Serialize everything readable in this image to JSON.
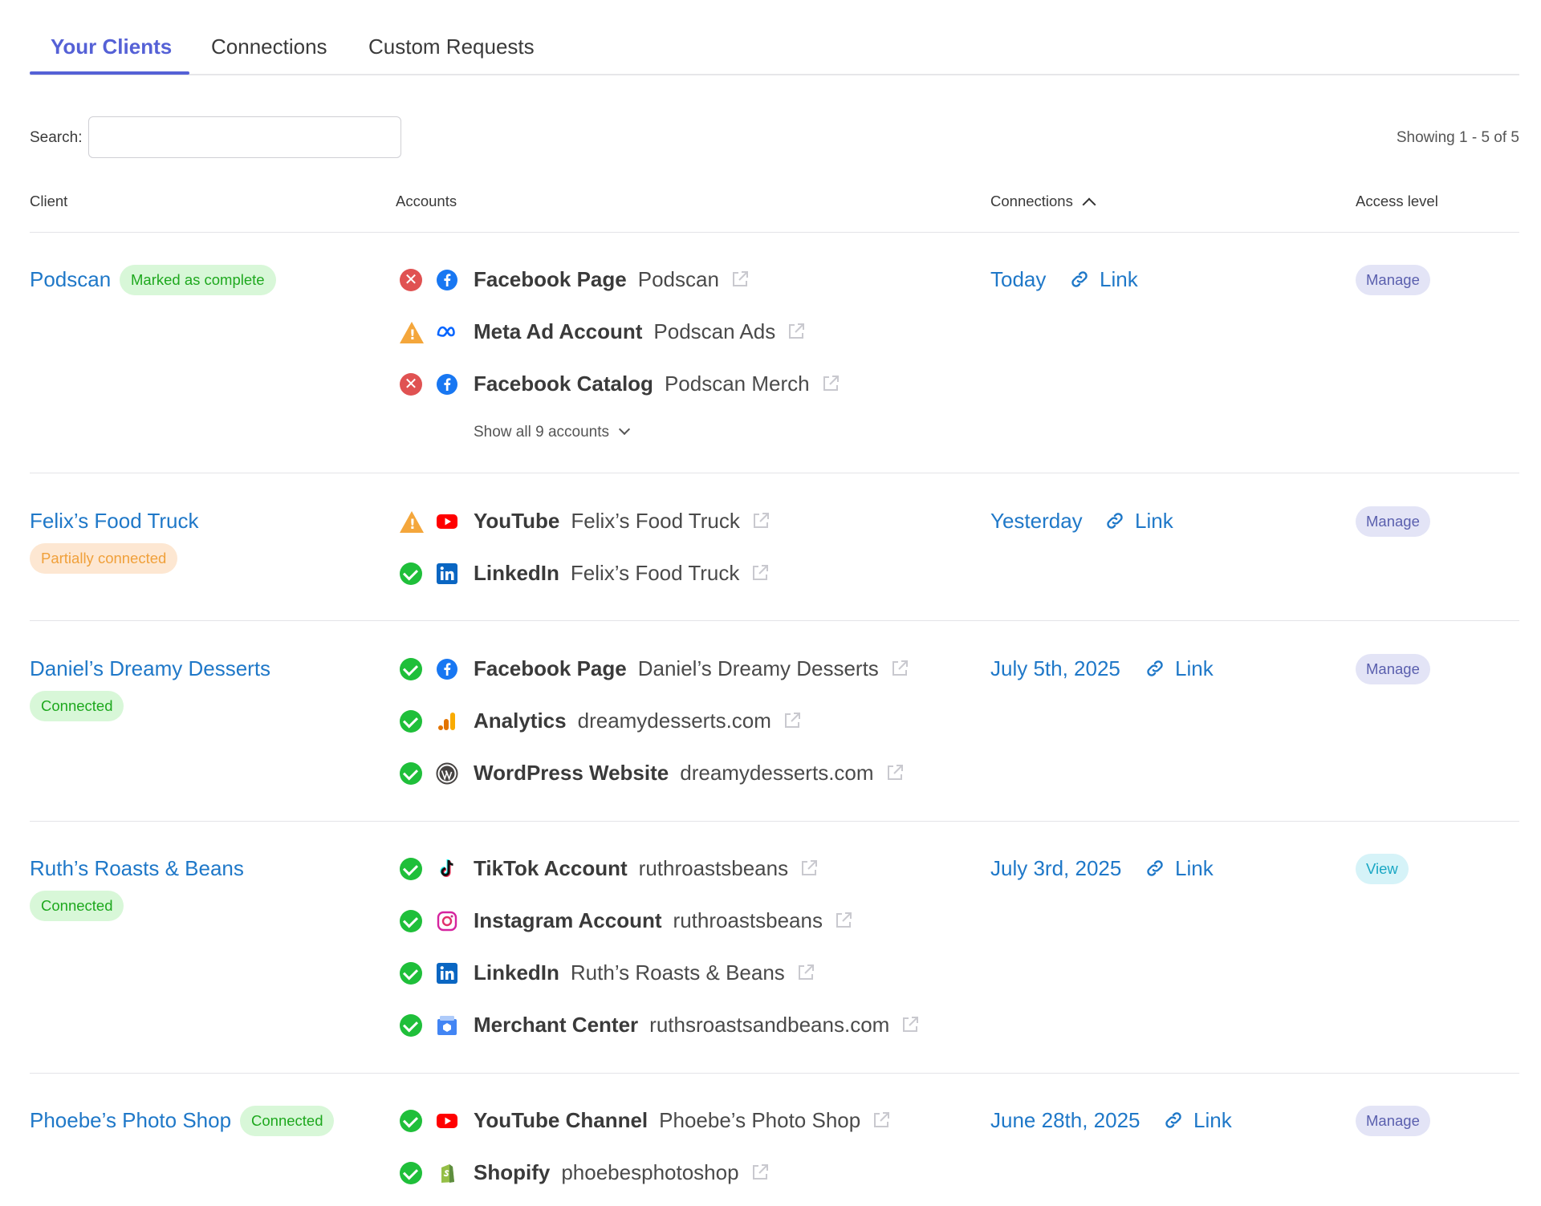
{
  "tabs": [
    {
      "label": "Your Clients",
      "active": true
    },
    {
      "label": "Connections",
      "active": false
    },
    {
      "label": "Custom Requests",
      "active": false
    }
  ],
  "search": {
    "label": "Search:",
    "value": "",
    "placeholder": ""
  },
  "showing": "Showing 1 - 5 of 5",
  "columns": {
    "client": "Client",
    "accounts": "Accounts",
    "connections": "Connections",
    "access": "Access level"
  },
  "colors": {
    "accent": "#5561d6",
    "link": "#1f78c8",
    "ok": "#1fbf3a",
    "error": "#e05252",
    "warning": "#f4a63b"
  },
  "clients": [
    {
      "name": "Podscan",
      "badge": "Marked as complete",
      "connection_date": "Today",
      "link_label": "Link",
      "access": "Manage",
      "accounts": [
        {
          "status": "error",
          "icon": "facebook-icon",
          "type": "Facebook Page",
          "name": "Podscan"
        },
        {
          "status": "warning",
          "icon": "meta-icon",
          "type": "Meta Ad Account",
          "name": "Podscan Ads"
        },
        {
          "status": "error",
          "icon": "facebook-icon",
          "type": "Facebook Catalog",
          "name": "Podscan Merch"
        }
      ],
      "show_all": "Show all 9 accounts"
    },
    {
      "name": "Felix’s Food Truck",
      "badge": "Partially connected",
      "connection_date": "Yesterday",
      "link_label": "Link",
      "access": "Manage",
      "accounts": [
        {
          "status": "warning",
          "icon": "youtube-icon",
          "type": "YouTube",
          "name": "Felix’s Food Truck"
        },
        {
          "status": "ok",
          "icon": "linkedin-icon",
          "type": "LinkedIn",
          "name": "Felix’s Food Truck"
        }
      ]
    },
    {
      "name": "Daniel’s Dreamy Desserts",
      "badge": "Connected",
      "connection_date": "July 5th, 2025",
      "link_label": "Link",
      "access": "Manage",
      "accounts": [
        {
          "status": "ok",
          "icon": "facebook-icon",
          "type": "Facebook Page",
          "name": "Daniel’s Dreamy Desserts"
        },
        {
          "status": "ok",
          "icon": "analytics-icon",
          "type": "Analytics",
          "name": "dreamydesserts.com"
        },
        {
          "status": "ok",
          "icon": "wordpress-icon",
          "type": "WordPress Website",
          "name": "dreamydesserts.com"
        }
      ]
    },
    {
      "name": "Ruth’s Roasts & Beans",
      "badge": "Connected",
      "connection_date": "July 3rd, 2025",
      "link_label": "Link",
      "access": "View",
      "accounts": [
        {
          "status": "ok",
          "icon": "tiktok-icon",
          "type": "TikTok Account",
          "name": "ruthroastsbeans"
        },
        {
          "status": "ok",
          "icon": "instagram-icon",
          "type": "Instagram Account",
          "name": "ruthroastsbeans"
        },
        {
          "status": "ok",
          "icon": "linkedin-icon",
          "type": "LinkedIn",
          "name": "Ruth’s Roasts & Beans"
        },
        {
          "status": "ok",
          "icon": "merchant-center-icon",
          "type": "Merchant Center",
          "name": "ruthsroastsandbeans.com"
        }
      ]
    },
    {
      "name": "Phoebe’s Photo Shop",
      "badge": "Connected",
      "connection_date": "June 28th, 2025",
      "link_label": "Link",
      "access": "Manage",
      "accounts": [
        {
          "status": "ok",
          "icon": "youtube-icon",
          "type": "YouTube Channel",
          "name": "Phoebe’s Photo Shop"
        },
        {
          "status": "ok",
          "icon": "shopify-icon",
          "type": "Shopify",
          "name": "phoebesphotoshop"
        }
      ]
    }
  ]
}
